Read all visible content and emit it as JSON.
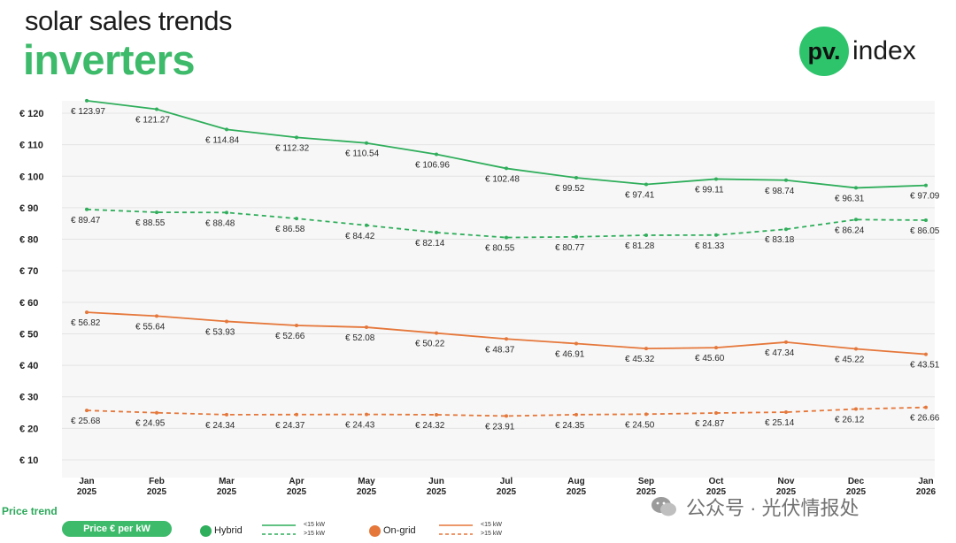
{
  "header": {
    "title": "solar sales trends",
    "subtitle": "inverters"
  },
  "logo": {
    "badge": "pv.",
    "text": "index"
  },
  "chart_data": {
    "type": "line",
    "categories": [
      [
        "Jan",
        "2025"
      ],
      [
        "Feb",
        "2025"
      ],
      [
        "Mar",
        "2025"
      ],
      [
        "Apr",
        "2025"
      ],
      [
        "May",
        "2025"
      ],
      [
        "Jun",
        "2025"
      ],
      [
        "Jul",
        "2025"
      ],
      [
        "Aug",
        "2025"
      ],
      [
        "Sep",
        "2025"
      ],
      [
        "Oct",
        "2025"
      ],
      [
        "Nov",
        "2025"
      ],
      [
        "Dec",
        "2025"
      ],
      [
        "Jan",
        "2026"
      ]
    ],
    "yticks": [
      "€ 10",
      "€ 20",
      "€ 30",
      "€ 40",
      "€ 50",
      "€ 60",
      "€ 70",
      "€ 80",
      "€ 90",
      "€ 100",
      "€ 110",
      "€ 120"
    ],
    "ylim": [
      10,
      120
    ],
    "series": [
      {
        "name": "Hybrid <15 kW",
        "color": "#2fae5b",
        "dashed": false,
        "values": [
          123.97,
          121.27,
          114.84,
          112.32,
          110.54,
          106.96,
          102.48,
          99.52,
          97.41,
          99.11,
          98.74,
          96.31,
          97.09
        ],
        "labels": [
          "€ 123.97",
          "€ 121.27",
          "€ 114.84",
          "€ 112.32",
          "€ 110.54",
          "€ 106.96",
          "€ 102.48",
          "€ 99.52",
          "€ 97.41",
          "€ 99.11",
          "€ 98.74",
          "€ 96.31",
          "€ 97.09"
        ]
      },
      {
        "name": "Hybrid >15 kW",
        "color": "#2fae5b",
        "dashed": true,
        "values": [
          89.47,
          88.55,
          88.48,
          86.58,
          84.42,
          82.14,
          80.55,
          80.77,
          81.28,
          81.33,
          83.18,
          86.24,
          86.05
        ],
        "labels": [
          "€ 89.47",
          "€ 88.55",
          "€ 88.48",
          "€ 86.58",
          "€ 84.42",
          "€ 82.14",
          "€ 80.55",
          "€ 80.77",
          "€ 81.28",
          "€ 81.33",
          "€ 83.18",
          "€ 86.24",
          "€ 86.05"
        ]
      },
      {
        "name": "On-grid <15 kW",
        "color": "#e5773a",
        "dashed": false,
        "values": [
          56.82,
          55.64,
          53.93,
          52.66,
          52.08,
          50.22,
          48.37,
          46.91,
          45.32,
          45.6,
          47.34,
          45.22,
          43.51
        ],
        "labels": [
          "€ 56.82",
          "€ 55.64",
          "€ 53.93",
          "€ 52.66",
          "€ 52.08",
          "€ 50.22",
          "€ 48.37",
          "€ 46.91",
          "€ 45.32",
          "€ 45.60",
          "€ 47.34",
          "€ 45.22",
          "€ 43.51"
        ]
      },
      {
        "name": "On-grid >15 kW",
        "color": "#e5773a",
        "dashed": true,
        "values": [
          25.68,
          24.95,
          24.34,
          24.37,
          24.43,
          24.32,
          23.91,
          24.35,
          24.5,
          24.87,
          25.14,
          26.12,
          26.66
        ],
        "labels": [
          "€ 25.68",
          "€ 24.95",
          "€ 24.34",
          "€ 24.37",
          "€ 24.43",
          "€ 24.32",
          "€ 23.91",
          "€ 24.35",
          "€ 24.50",
          "€ 24.87",
          "€ 25.14",
          "€ 26.12",
          "€ 26.66"
        ]
      }
    ],
    "grid": true
  },
  "footer": {
    "title": "Price trend",
    "button": "Price € per kW",
    "legend": {
      "hybrid_label": "Hybrid",
      "hybrid_color": "#2fae5b",
      "ongrid_label": "On-grid",
      "ongrid_color": "#e5773a",
      "small_lt": "<15 kW",
      "small_gt": ">15 kW"
    }
  },
  "watermark": {
    "text": "公众号 · 光伏情报处"
  }
}
